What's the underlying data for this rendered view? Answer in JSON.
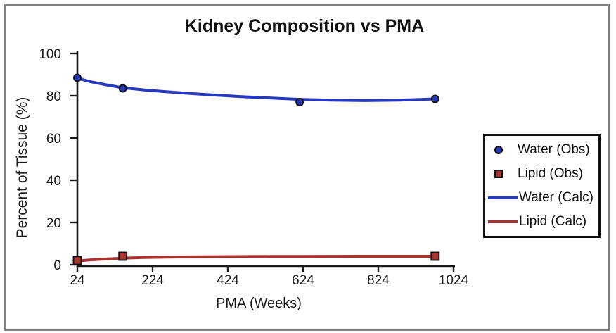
{
  "colors": {
    "frame_border": "#818181",
    "axis": "#1a1a1a",
    "text": "#1a1a1a",
    "legend_border": "#111111",
    "water_blue": "#2638bd",
    "lipid_red": "#a93330"
  },
  "chart_data": {
    "type": "line",
    "title": "Kidney Composition vs PMA",
    "xlabel": "PMA (Weeks)",
    "ylabel": "Percent of Tissue (%)",
    "xlim": [
      24,
      1024
    ],
    "ylim": [
      0,
      100
    ],
    "xticks": [
      24,
      224,
      424,
      624,
      824,
      1024
    ],
    "yticks": [
      0,
      20,
      40,
      60,
      80,
      100
    ],
    "grid": false,
    "legend_position": "right",
    "series": [
      {
        "name": "Water (Obs)",
        "kind": "scatter",
        "marker": "circle",
        "color": "#2638bd",
        "x": [
          24,
          145,
          615,
          975
        ],
        "y": [
          88.5,
          83.5,
          77,
          78.5
        ]
      },
      {
        "name": "Lipid (Obs)",
        "kind": "scatter",
        "marker": "square",
        "color": "#a93330",
        "x": [
          24,
          145,
          975
        ],
        "y": [
          2,
          4,
          4
        ]
      },
      {
        "name": "Water (Calc)",
        "kind": "line",
        "color": "#2638bd",
        "x": [
          24,
          60,
          100,
          145,
          200,
          260,
          330,
          400,
          470,
          540,
          615,
          700,
          790,
          880,
          975
        ],
        "y": [
          88.3,
          86.6,
          85.2,
          83.8,
          82.8,
          81.9,
          81.0,
          80.2,
          79.5,
          78.9,
          78.3,
          77.9,
          77.7,
          77.9,
          78.5
        ]
      },
      {
        "name": "Lipid (Calc)",
        "kind": "line",
        "color": "#a93330",
        "x": [
          24,
          60,
          100,
          145,
          200,
          260,
          330,
          400,
          470,
          540,
          615,
          700,
          790,
          880,
          975
        ],
        "y": [
          1.8,
          2.3,
          2.7,
          3.1,
          3.4,
          3.6,
          3.7,
          3.8,
          3.85,
          3.9,
          3.9,
          3.95,
          4.0,
          4.0,
          4.0
        ]
      }
    ]
  }
}
